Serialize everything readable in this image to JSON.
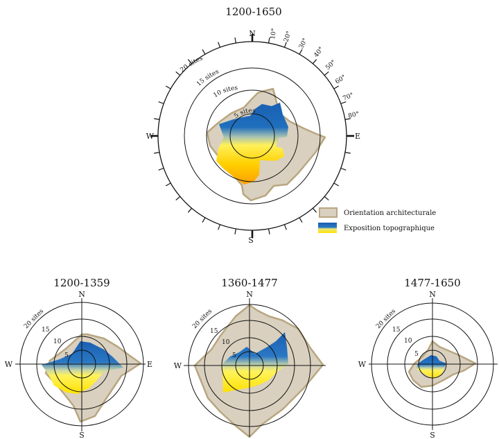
{
  "main": {
    "title": "1200-1650",
    "cardinals": {
      "n": "N",
      "e": "E",
      "s": "S",
      "w": "W"
    },
    "ring_labels": [
      "5 sites",
      "10 sites",
      "15 sites",
      "20 sites"
    ],
    "degree_labels": [
      "10°",
      "20°",
      "30°",
      "40°",
      "50°",
      "60°",
      "70°",
      "80°"
    ]
  },
  "legend": {
    "architectural": "Orientation architecturale",
    "topographic": "Exposition topographique"
  },
  "small": [
    {
      "title": "1200-1359",
      "cardinals": {
        "n": "N",
        "e": "E",
        "s": "S",
        "w": "W"
      },
      "ring_labels": [
        "5",
        "10",
        "15",
        "20 sites"
      ]
    },
    {
      "title": "1360-1477",
      "cardinals": {
        "n": "N",
        "s": "S",
        "w": "W"
      },
      "ring_labels": [
        "5",
        "10",
        "15",
        "20 sites"
      ]
    },
    {
      "title": "1477-1650",
      "cardinals": {
        "n": "N",
        "s": "S",
        "w": "W"
      },
      "ring_labels": [
        "5",
        "10",
        "15",
        "20 sites"
      ]
    }
  ],
  "colors": {
    "architectural_fill": "#d9d0bf",
    "architectural_stroke": "#b8a680",
    "topo_top": "#1a62b4",
    "topo_bottom": "#ffe200",
    "topo_low": "#ffab00"
  }
}
